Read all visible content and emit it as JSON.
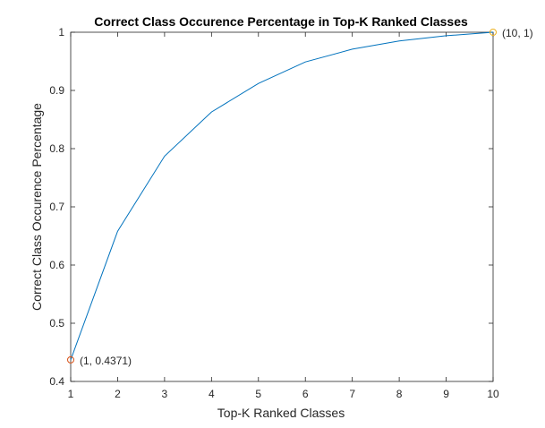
{
  "chart_data": {
    "type": "line",
    "title": "Correct Class Occurence Percentage in Top-K Ranked Classes",
    "xlabel": "Top-K Ranked Classes",
    "ylabel": "Correct Class Occurence Percentage",
    "xlim": [
      1,
      10
    ],
    "ylim": [
      0.4,
      1
    ],
    "xticks": [
      1,
      2,
      3,
      4,
      5,
      6,
      7,
      8,
      9,
      10
    ],
    "yticks": [
      0.4,
      0.5,
      0.6,
      0.7,
      0.8,
      0.9,
      1
    ],
    "xtick_labels": [
      "1",
      "2",
      "3",
      "4",
      "5",
      "6",
      "7",
      "8",
      "9",
      "10"
    ],
    "ytick_labels": [
      "0.4",
      "0.5",
      "0.6",
      "0.7",
      "0.8",
      "0.9",
      "1"
    ],
    "grid": false,
    "series": [
      {
        "x": [
          1,
          2,
          3,
          4,
          5,
          6,
          7,
          8,
          9,
          10
        ],
        "y": [
          0.4371,
          0.658,
          0.787,
          0.863,
          0.912,
          0.949,
          0.971,
          0.985,
          0.994,
          1.0
        ],
        "color": "#0072BD"
      }
    ],
    "markers": [
      {
        "x": 1,
        "y": 0.4371,
        "label": "(1, 0.4371)",
        "color": "#D95319"
      },
      {
        "x": 10,
        "y": 1,
        "label": "(10, 1)",
        "color": "#EDB120"
      }
    ]
  }
}
